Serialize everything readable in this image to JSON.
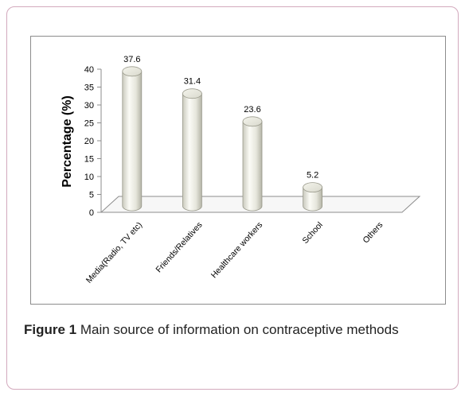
{
  "figure": {
    "label": "Figure 1",
    "caption": "Main source of information on contraceptive methods",
    "accent_border": "#d3a9bd"
  },
  "chart_data": {
    "type": "bar",
    "style": "3d-cylinder",
    "categories": [
      "Media(Radio, TV etc)",
      "Friends/Relatives",
      "Healthcare workers",
      "School",
      "Others"
    ],
    "values": [
      37.6,
      31.4,
      23.6,
      5.2,
      0
    ],
    "data_labels": [
      "37.6",
      "31.4",
      "23.6",
      "5.2",
      ""
    ],
    "ylabel": "Percentage (%)",
    "xlabel": "",
    "ylim": [
      0,
      40
    ],
    "yticks": [
      "0",
      "5",
      "10",
      "15",
      "20",
      "25",
      "30",
      "35",
      "40"
    ],
    "grid": false,
    "legend": "none",
    "bar_color": "#efefe6"
  }
}
